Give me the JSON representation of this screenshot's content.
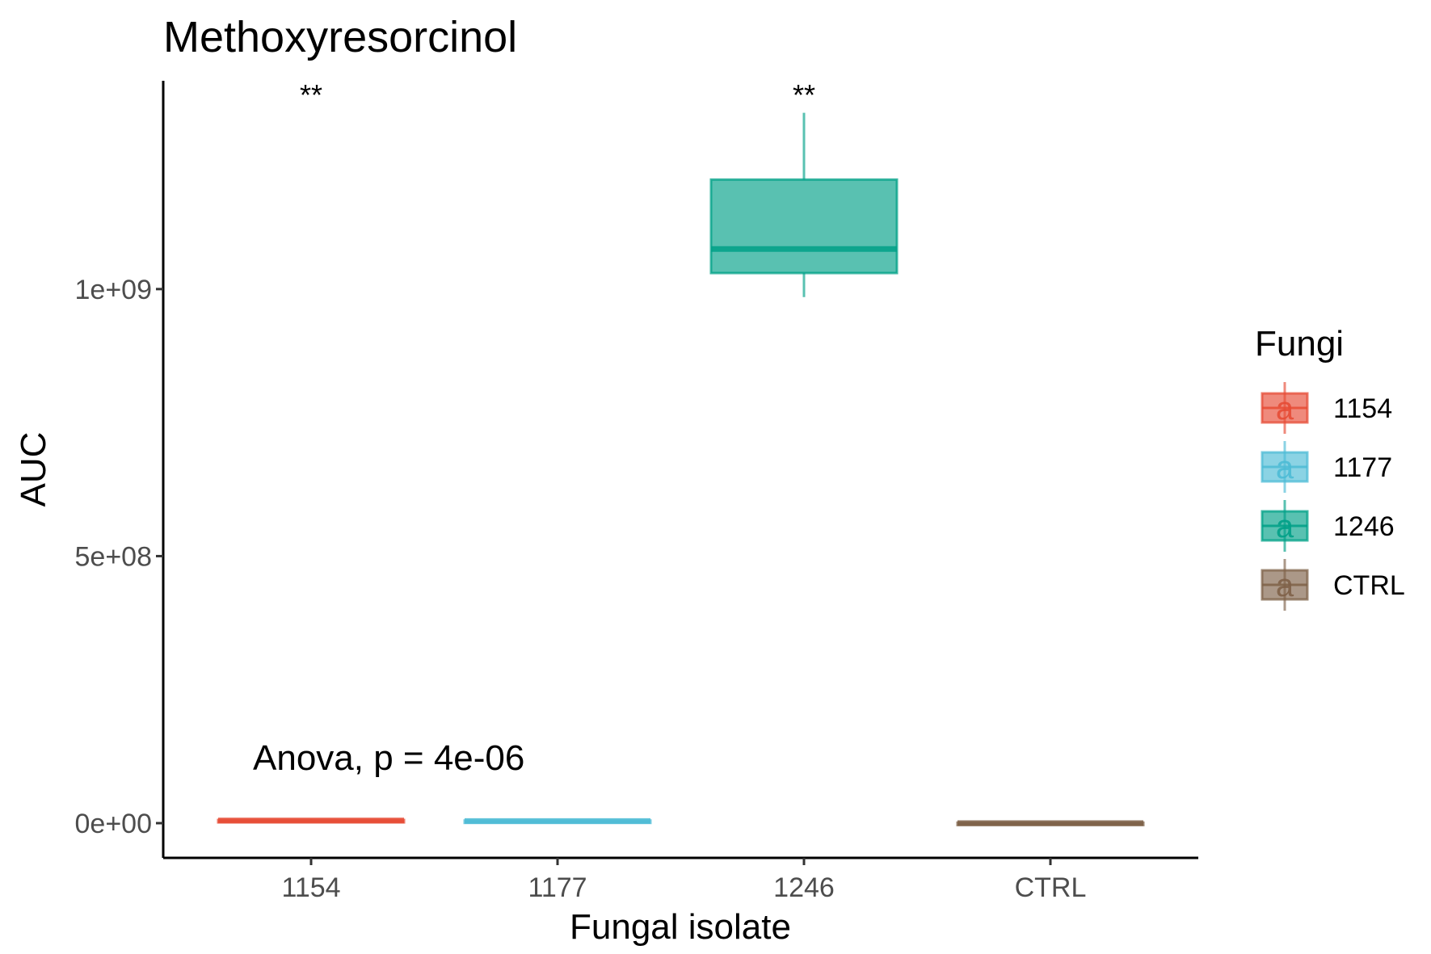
{
  "chart_data": {
    "type": "box",
    "title": "Methoxyresorcinol",
    "xlabel": "Fungal isolate",
    "ylabel": "AUC",
    "ylim": [
      -65000000,
      1390000000
    ],
    "yticks": [
      {
        "value": 0,
        "label": "0e+00"
      },
      {
        "value": 500000000,
        "label": "5e+08"
      },
      {
        "value": 1000000000,
        "label": "1e+09"
      }
    ],
    "categories": [
      "1154",
      "1177",
      "1246",
      "CTRL"
    ],
    "series": [
      {
        "name": "1154",
        "color": "#e64b35",
        "min": 4000000,
        "q1": 4000000,
        "median": 5000000,
        "q3": 6000000,
        "max": 7000000,
        "significance": "**"
      },
      {
        "name": "1177",
        "color": "#4dbbd5",
        "min": 3000000,
        "q1": 3000000,
        "median": 4000000,
        "q3": 5000000,
        "max": 6000000,
        "significance": ""
      },
      {
        "name": "1246",
        "color": "#00a087",
        "min": 985000000,
        "q1": 1030000000,
        "median": 1075000000,
        "q3": 1205000000,
        "max": 1330000000,
        "significance": "**"
      },
      {
        "name": "CTRL",
        "color": "#7e6148",
        "min": -2000000,
        "q1": -1000000,
        "median": 0,
        "q3": 1000000,
        "max": 2000000,
        "significance": ""
      }
    ],
    "annotation": "Anova, p = 4e-06",
    "legend": {
      "title": "Fungi",
      "position": "right",
      "key_glyph": "a"
    },
    "grid": false
  }
}
